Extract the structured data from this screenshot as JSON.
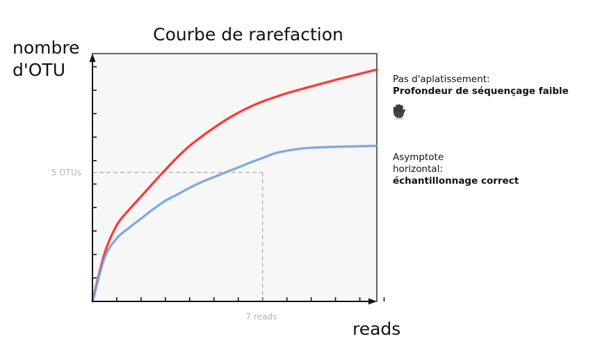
{
  "chart_data": {
    "type": "line",
    "title": "Courbe de rarefaction",
    "ylabel_line1": "nombre",
    "ylabel_line2": "d'OTU",
    "xlabel": "reads",
    "xlim": [
      0,
      11.7
    ],
    "ylim": [
      0,
      10.56
    ],
    "grid": false,
    "x_ticks": 12,
    "y_ticks": 10,
    "series": [
      {
        "color": "#ff2020",
        "x": [
          0,
          0.5,
          1,
          1.5,
          2,
          2.5,
          3,
          3.5,
          4,
          4.5,
          5,
          5.5,
          6,
          6.5,
          7,
          7.5,
          8,
          8.5,
          9,
          9.5,
          10,
          10.5,
          11,
          11.7
        ],
        "y": [
          0,
          2.06,
          3.25,
          3.9,
          4.47,
          5.05,
          5.61,
          6.15,
          6.63,
          7.03,
          7.4,
          7.74,
          8.04,
          8.3,
          8.52,
          8.7,
          8.87,
          9.02,
          9.16,
          9.3,
          9.44,
          9.57,
          9.7,
          9.88
        ]
      },
      {
        "color": "#6f9fdc",
        "x": [
          0,
          0.5,
          1,
          1.5,
          2,
          2.5,
          3,
          3.5,
          4,
          4.5,
          5,
          5.5,
          6,
          6.5,
          7,
          7.5,
          8,
          8.5,
          9,
          9.5,
          10,
          10.5,
          11,
          11.7
        ],
        "y": [
          0,
          1.86,
          2.69,
          3.13,
          3.53,
          3.93,
          4.29,
          4.56,
          4.84,
          5.09,
          5.3,
          5.51,
          5.71,
          5.92,
          6.11,
          6.31,
          6.42,
          6.5,
          6.55,
          6.57,
          6.59,
          6.6,
          6.61,
          6.63
        ]
      }
    ],
    "reference": {
      "x": 7,
      "y": 5.5,
      "x_label": "7 reads",
      "y_label": "5 OTUs"
    }
  },
  "annotations": {
    "no_plateau": {
      "line1": "Pas d'aplatissement:",
      "bold": "Profondeur de séquençage faible",
      "icon": "hand-stop-icon"
    },
    "asymptote": {
      "line1": "Asymptote",
      "line2": "horizontal:",
      "bold": "échantillonnage correct"
    }
  }
}
